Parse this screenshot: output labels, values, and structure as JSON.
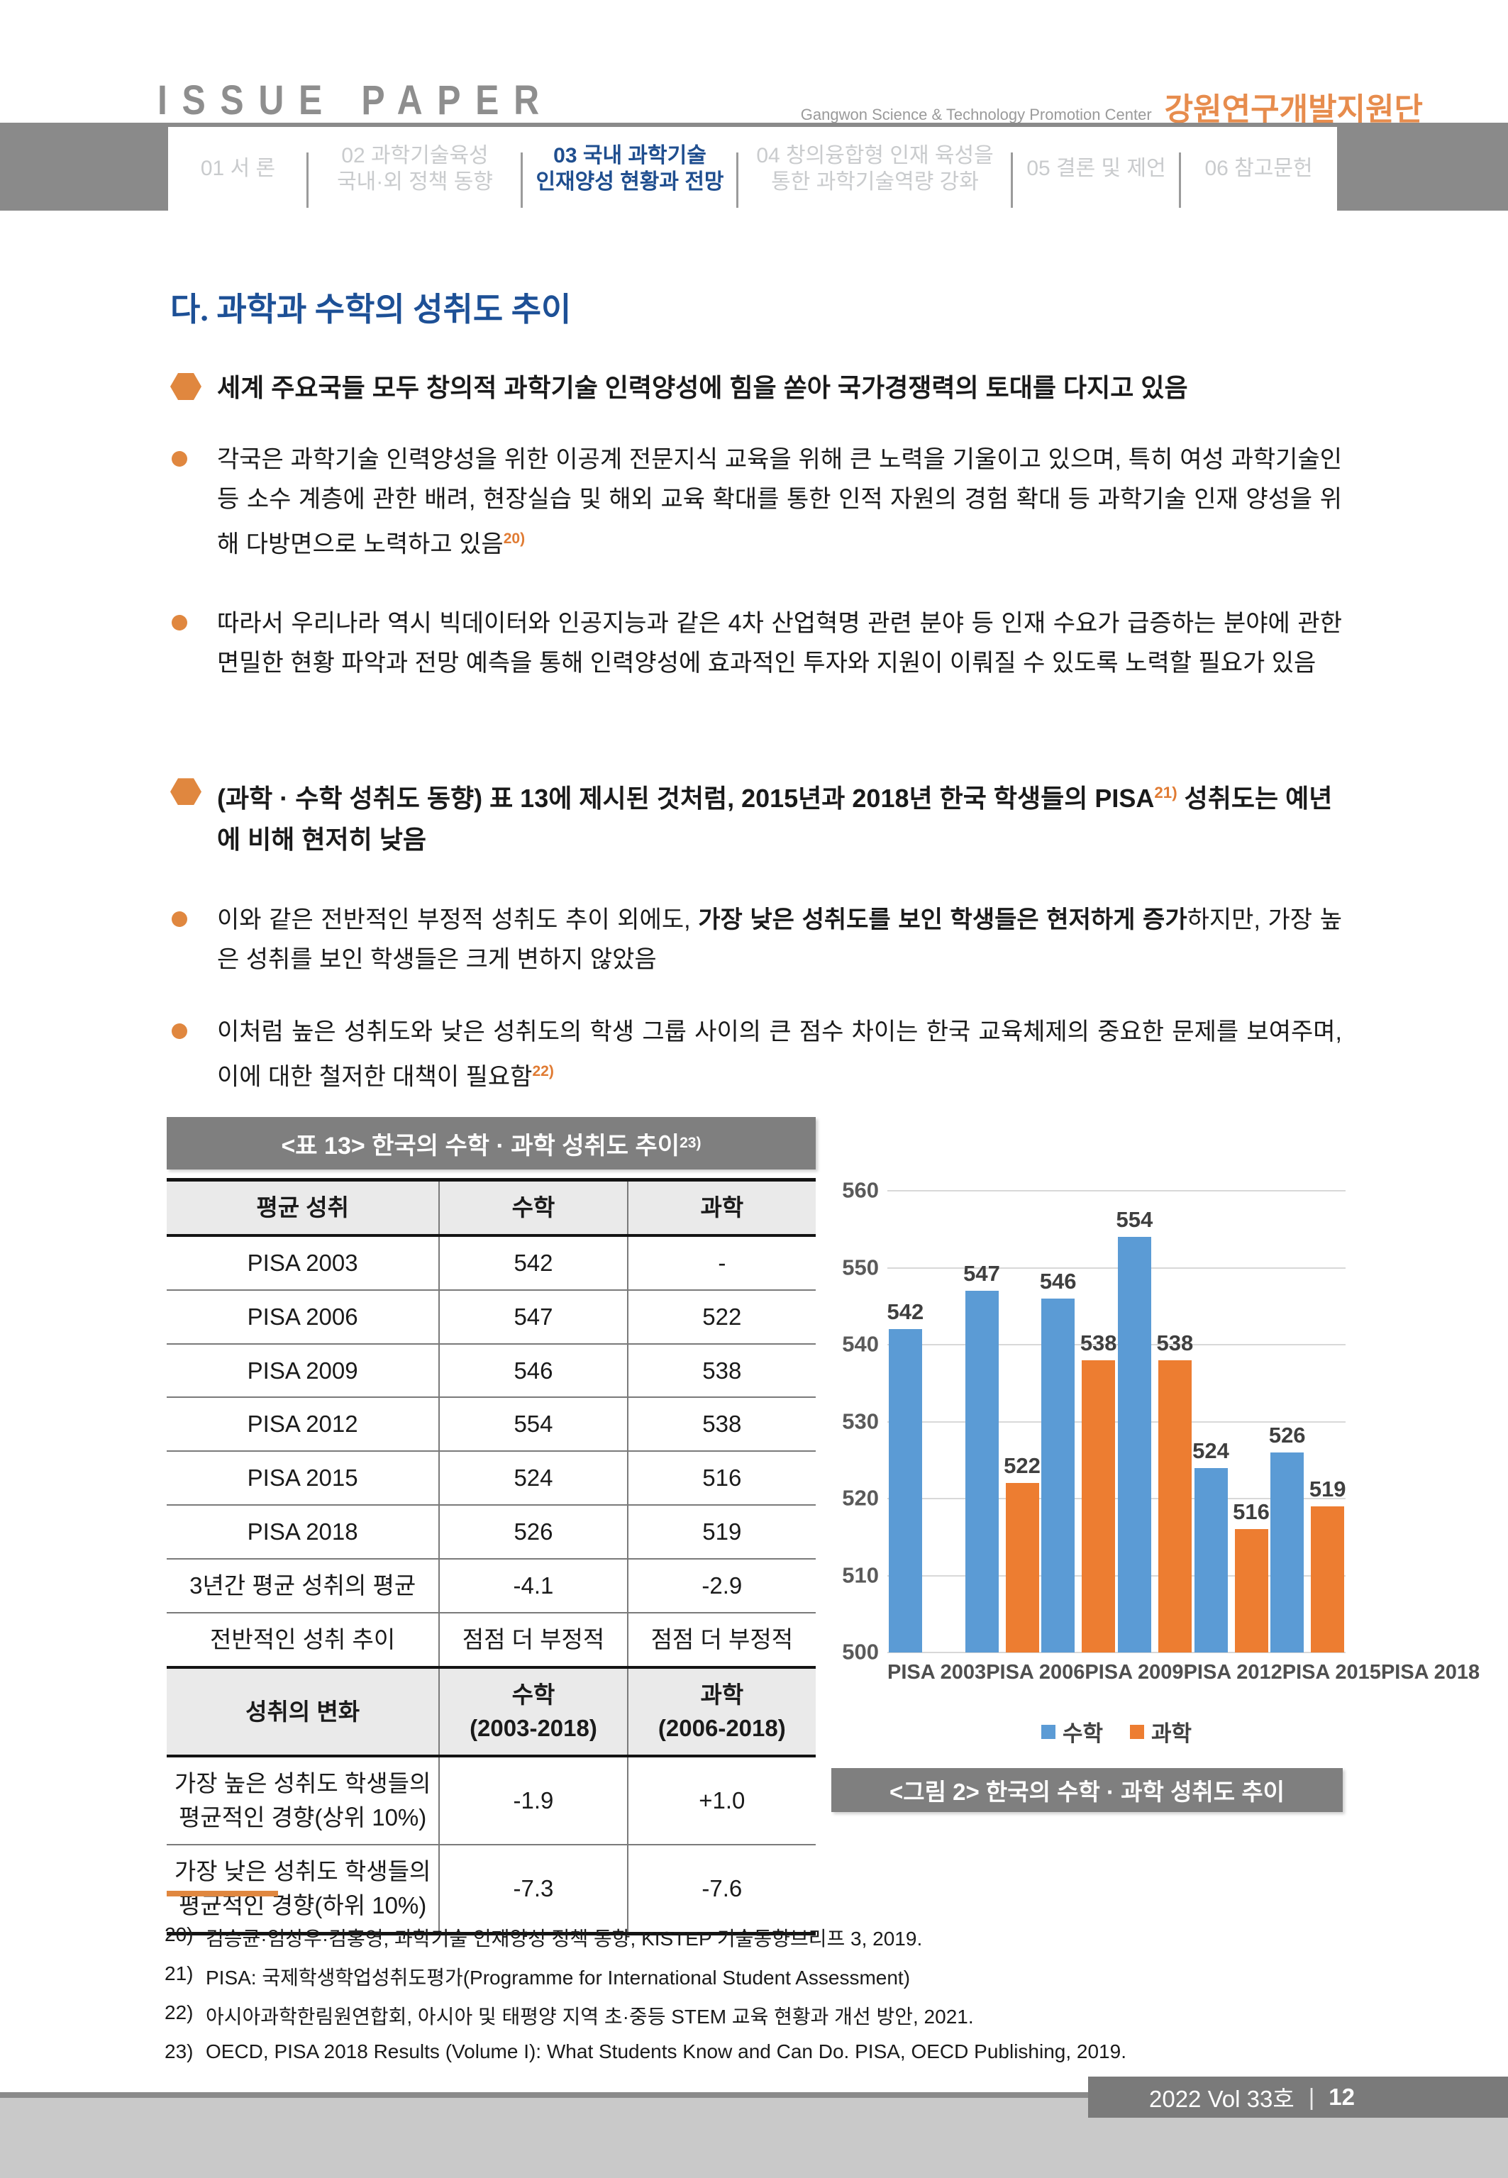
{
  "header": {
    "logo": "ISSUE PAPER",
    "center_en": "Gangwon Science & Technology Promotion Center",
    "brand": "강원연구개발지원단"
  },
  "nav": {
    "tabs": [
      {
        "label": "01 서 론",
        "active": false
      },
      {
        "label": "02 과학기술육성\n국내·외 정책 동향",
        "active": false
      },
      {
        "label": "03 국내 과학기술\n인재양성 현황과 전망",
        "active": true
      },
      {
        "label": "04 창의융합형 인재 육성을\n통한 과학기술역량 강화",
        "active": false
      },
      {
        "label": "05 결론 및 제언",
        "active": false
      },
      {
        "label": "06 참고문헌",
        "active": false
      }
    ]
  },
  "section": {
    "title": "다. 과학과 수학의 성취도 추이"
  },
  "bullets": [
    {
      "style": "hex",
      "segments": [
        {
          "text": "세계 주요국들 모두 창의적 과학기술 인력양성에 힘을 쏟아 국가경쟁력의 토대를 다지고 있음",
          "bold": true
        }
      ]
    },
    {
      "style": "dot",
      "segments": [
        {
          "text": "각국은 과학기술 인력양성을 위한 이공계 전문지식 교육을 위해 큰 노력을 기울이고 있으며, 특히 여성 과학기술인 등 소수 계층에 관한 배려, 현장실습 및 해외 교육 확대를 통한 인적 자원의 경험 확대 등 과학기술 인재 양성을 위해 다방면으로 노력하고 있음"
        },
        {
          "text": "20)",
          "sup": true
        }
      ]
    },
    {
      "style": "dot",
      "segments": [
        {
          "text": "따라서 우리나라 역시 빅데이터와 인공지능과 같은 4차 산업혁명 관련 분야 등 인재 수요가 급증하는 분야에 관한 면밀한 현황 파악과 전망 예측을 통해 인력양성에 효과적인 투자와 지원이 이뤄질 수 있도록 노력할 필요가 있음"
        }
      ]
    },
    {
      "style": "hex",
      "segments": [
        {
          "text": "(과학 · 수학 성취도 동향)",
          "bold": true
        },
        {
          "text": " 표 13에 제시된 것처럼, 2015년과 2018년 한국 학생들의 PISA",
          "bold": true
        },
        {
          "text": "21)",
          "sup": true
        },
        {
          "text": " 성취도는 예년에 비해 현저히 낮음",
          "bold": true
        }
      ]
    },
    {
      "style": "dot",
      "segments": [
        {
          "text": "이와 같은 전반적인 부정적 성취도 추이 외에도, "
        },
        {
          "text": "가장 낮은 성취도를 보인 학생들은 현저하게 증가",
          "bold": true
        },
        {
          "text": "하지만, 가장 높은 성취를 보인 학생들은 크게 변하지 않았음"
        }
      ]
    },
    {
      "style": "dot",
      "segments": [
        {
          "text": "이처럼 높은 성취도와 낮은 성취도의 학생 그룹 사이의 큰 점수 차이는 한국 교육체제의 중요한 문제를 보여주며, 이에 대한 철저한 대책이 필요함"
        },
        {
          "text": "22)",
          "sup": true
        }
      ]
    }
  ],
  "table": {
    "title": "<표 13> 한국의 수학 · 과학 성취도 추이",
    "title_sup": "23)",
    "col_widths": [
      "42%",
      "29%",
      "29%"
    ],
    "rows": [
      {
        "type": "head",
        "cells": [
          "평균 성취",
          "수학",
          "과학"
        ]
      },
      {
        "cells": [
          "PISA 2003",
          "542",
          "-"
        ]
      },
      {
        "cells": [
          "PISA 2006",
          "547",
          "522"
        ]
      },
      {
        "cells": [
          "PISA 2009",
          "546",
          "538"
        ]
      },
      {
        "cells": [
          "PISA 2012",
          "554",
          "538"
        ]
      },
      {
        "cells": [
          "PISA 2015",
          "524",
          "516"
        ]
      },
      {
        "cells": [
          "PISA 2018",
          "526",
          "519"
        ]
      },
      {
        "cells": [
          "3년간 평균 성취의 평균",
          "-4.1",
          "-2.9"
        ]
      },
      {
        "cells": [
          "전반적인 성취 추이",
          "점점 더 부정적",
          "점점 더 부정적"
        ]
      },
      {
        "type": "head",
        "cells": [
          "성취의 변화",
          "수학\n(2003-2018)",
          "과학\n(2006-2018)"
        ]
      },
      {
        "cells": [
          "가장 높은 성취도 학생들의\n평균적인 경향(상위 10%)",
          "-1.9",
          "+1.0"
        ]
      },
      {
        "cells": [
          "가장 낮은 성취도 학생들의\n평균적인 경향(하위 10%)",
          "-7.3",
          "-7.6"
        ]
      }
    ]
  },
  "chart_data": {
    "type": "bar",
    "title": "",
    "categories": [
      "PISA 2003",
      "PISA 2006",
      "PISA 2009",
      "PISA 2012",
      "PISA 2015",
      "PISA 2018"
    ],
    "series": [
      {
        "name": "수학",
        "color": "#5B9BD5",
        "values": [
          542,
          547,
          546,
          554,
          524,
          526
        ]
      },
      {
        "name": "과학",
        "color": "#ED7D31",
        "values": [
          null,
          522,
          538,
          538,
          516,
          519
        ]
      }
    ],
    "ylim": [
      500,
      560
    ],
    "ytick_step": 10,
    "grid": true,
    "legend_position": "bottom",
    "caption": "<그림 2> 한국의 수학 · 과학 성취도 추이"
  },
  "footnotes": [
    {
      "num": "20)",
      "text": "김승균·임상우·김홍영, 과학기술 인재양성 정책 동향, KISTEP 기술동향브리프 3, 2019."
    },
    {
      "num": "21)",
      "text": "PISA: 국제학생학업성취도평가(Programme for International Student Assessment)"
    },
    {
      "num": "22)",
      "text": "아시아과학한림원연합회, 아시아 및 태평양 지역 초·중등 STEM 교육 현황과 개선 방안, 2021."
    },
    {
      "num": "23)",
      "text": "OECD, PISA 2018 Results (Volume I): What Students Know and Can Do. PISA, OECD Publishing, 2019."
    }
  ],
  "footer": {
    "volume": "2022 Vol 33호",
    "divider": "|",
    "page": "12"
  },
  "colors": {
    "accent_orange": "#E0873F",
    "brand_orange": "#E78C4D",
    "active_tab_blue": "#1F4E8F",
    "title_blue": "#1D5096",
    "bar_math_blue": "#5B9BD5",
    "bar_science_orange": "#ED7D31",
    "gray_block": "#8A8A8A",
    "bar_caption_gray": "#7F7F7F"
  }
}
